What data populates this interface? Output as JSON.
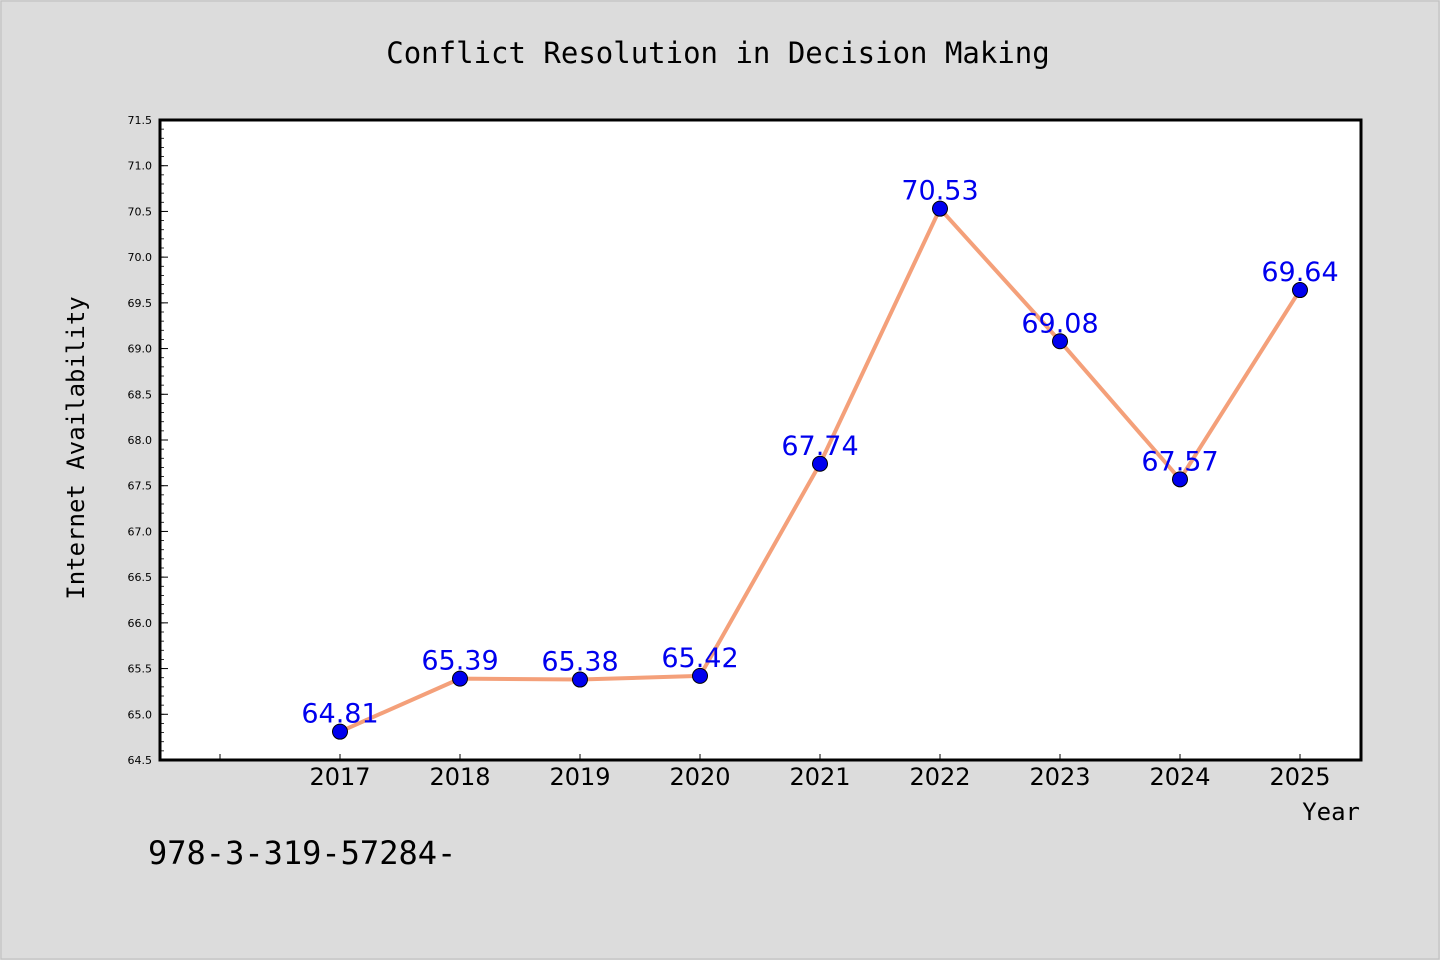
{
  "chart_data": {
    "type": "line",
    "title": "Conflict Resolution in Decision Making",
    "xlabel": "Year",
    "ylabel": "Internet Availability",
    "categories": [
      "2017",
      "2018",
      "2019",
      "2020",
      "2021",
      "2022",
      "2023",
      "2024",
      "2025"
    ],
    "series": [
      {
        "values": [
          64.81,
          65.39,
          65.38,
          65.42,
          67.74,
          70.53,
          69.08,
          67.57,
          69.64
        ],
        "data_labels": [
          "64.81",
          "65.39",
          "65.38",
          "65.42",
          "67.74",
          "70.53",
          "69.08",
          "67.57",
          "69.64"
        ],
        "line_color": "#f4a07a",
        "marker_color": "#0000ee"
      }
    ],
    "ylim": [
      64.5,
      71.5
    ],
    "yticks": [
      "64.5",
      "65.0",
      "65.5",
      "66.0",
      "66.5",
      "67.0",
      "67.5",
      "68.0",
      "68.5",
      "69.0",
      "69.5",
      "70.0",
      "70.5",
      "71.0",
      "71.5"
    ],
    "grid": false,
    "legend": "none"
  },
  "footer_text": "978-3-319-57284-",
  "colors": {
    "background": "#dcdcdc",
    "plot_background": "#ffffff",
    "label_color": "#0000ee",
    "line_color": "#f4a07a"
  }
}
